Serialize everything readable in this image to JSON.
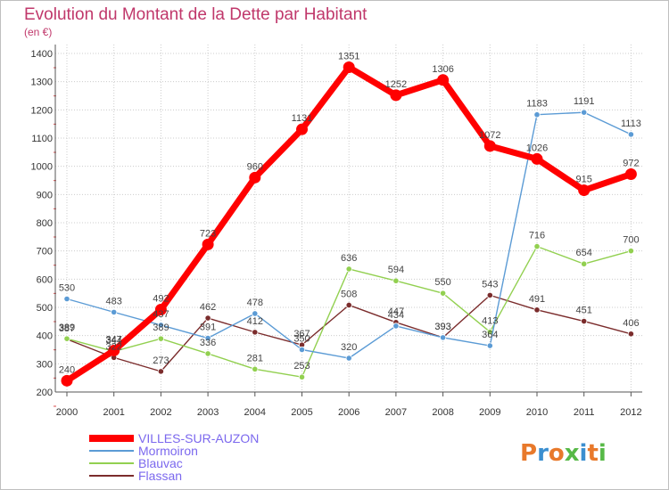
{
  "chart_data": {
    "type": "line",
    "title": "Evolution du Montant de la Dette par Habitant",
    "subtitle": "(en €)",
    "x": [
      "2000",
      "2001",
      "2002",
      "2003",
      "2004",
      "2005",
      "2006",
      "2007",
      "2008",
      "2009",
      "2010",
      "2011",
      "2012"
    ],
    "y_ticks": [
      200,
      300,
      400,
      500,
      600,
      700,
      800,
      900,
      1000,
      1100,
      1200,
      1300,
      1400
    ],
    "ylim": [
      200,
      1400
    ],
    "grid": true,
    "legend_position": "bottom-left",
    "series": [
      {
        "name": "VILLES-SUR-AUZON",
        "color": "#ff0000",
        "values": [
          240,
          347,
          492,
          723,
          960,
          1131,
          1351,
          1252,
          1306,
          1072,
          1026,
          915,
          972
        ]
      },
      {
        "name": "Mormoiron",
        "color": "#5b9bd5",
        "values": [
          530,
          483,
          437,
          391,
          478,
          350,
          320,
          434,
          393,
          364,
          1183,
          1191,
          1113
        ]
      },
      {
        "name": "Blauvac",
        "color": "#92d050",
        "values": [
          389,
          344,
          389,
          336,
          281,
          253,
          636,
          594,
          550,
          413,
          716,
          654,
          700
        ]
      },
      {
        "name": "Flassan",
        "color": "#7b2c2c",
        "values": [
          387,
          322,
          273,
          462,
          412,
          367,
          508,
          447,
          393,
          543,
          491,
          451,
          406
        ]
      }
    ]
  },
  "colors": {
    "title": "#c0386b",
    "axis_text": "#333333",
    "grid": "#cccccc",
    "legend_text": "#7b68ee"
  },
  "logo": {
    "text": "Proxiti"
  }
}
